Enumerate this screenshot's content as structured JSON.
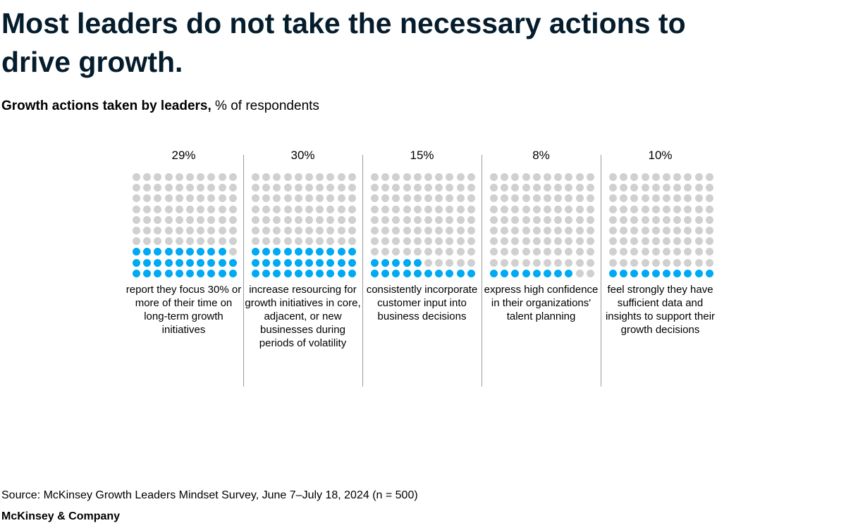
{
  "title": "Most leaders do not take the necessary actions to drive growth.",
  "subtitle": {
    "bold": "Growth actions taken by leaders,",
    "rest": " % of respondents"
  },
  "colors": {
    "filled": "#00a9f4",
    "empty": "#d0d0d0",
    "divider": "#9a9a9a",
    "title": "#051c2c"
  },
  "chart_data": {
    "type": "waffle",
    "grid": {
      "rows": 10,
      "cols": 10
    },
    "series": [
      {
        "label": "29%",
        "value": 29,
        "description": "report they focus 30% or more of their time on long-term growth initiatives"
      },
      {
        "label": "30%",
        "value": 30,
        "description": "increase resourcing for growth initiatives in core, adjacent, or new businesses during periods of volatility"
      },
      {
        "label": "15%",
        "value": 15,
        "description": "consistently incorporate customer input into business decisions"
      },
      {
        "label": "8%",
        "value": 8,
        "description": "express high confidence in their organizations' talent planning"
      },
      {
        "label": "10%",
        "value": 10,
        "description": "feel strongly they have sufficient data and insights to support their growth decisions"
      }
    ]
  },
  "source": "Source: McKinsey Growth Leaders Mindset Survey, June 7–July 18, 2024 (n = 500)",
  "brand": "McKinsey & Company"
}
